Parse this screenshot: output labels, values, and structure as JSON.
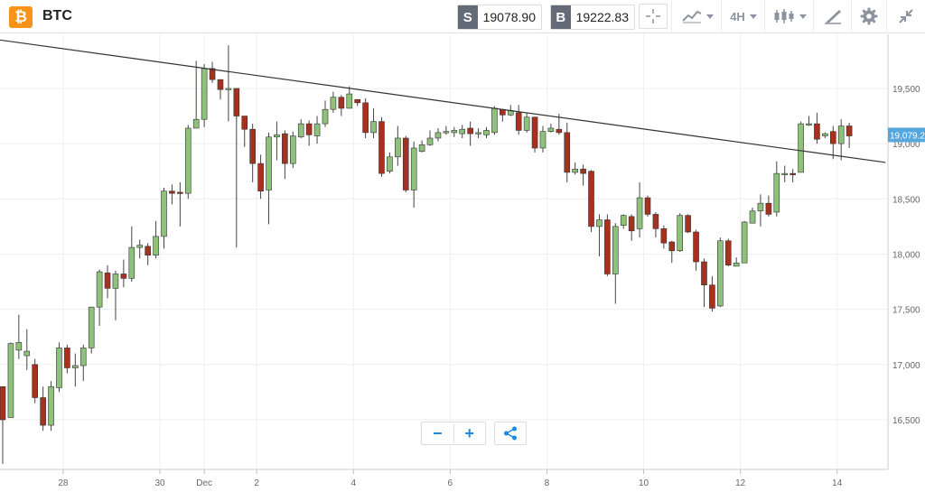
{
  "header": {
    "symbol": "BTC",
    "logo_glyph": "₿",
    "sell": {
      "tag": "S",
      "price": "19078.90"
    },
    "buy": {
      "tag": "B",
      "price": "19222.83"
    },
    "timeframe": "4H"
  },
  "icons": [
    "bitcoin-logo-icon",
    "crosshair-icon",
    "indicators-icon",
    "candlestick-type-icon",
    "drawing-tool-icon",
    "gear-icon",
    "collapse-icon",
    "zoom-out-icon",
    "zoom-in-icon",
    "share-icon"
  ],
  "colors": {
    "up": "#8ec27b",
    "down": "#a5311e",
    "grid": "#efefef",
    "axis_text": "#666666",
    "price_tag": "#56a7dd",
    "accent": "#1e88e5"
  },
  "chart_data": {
    "type": "candlestick",
    "x_ticks": [
      {
        "label": "28",
        "index": 7.5
      },
      {
        "label": "30",
        "index": 19.5
      },
      {
        "label": "Dec",
        "index": 25
      },
      {
        "label": "2",
        "index": 31.5
      },
      {
        "label": "4",
        "index": 43.5
      },
      {
        "label": "6",
        "index": 55.5
      },
      {
        "label": "8",
        "index": 67.5
      },
      {
        "label": "10",
        "index": 79.5
      },
      {
        "label": "12",
        "index": 91.5
      },
      {
        "label": "14",
        "index": 103.5
      }
    ],
    "y_ticks": [
      "16,500",
      "17,000",
      "17,500",
      "18,000",
      "18,500",
      "19,000",
      "19,500"
    ],
    "ylim": [
      16050,
      19990
    ],
    "current_price_label": "19,079.21",
    "current_price": 19079.21,
    "trendline": [
      [
        -0.5,
        19940
      ],
      [
        109.5,
        18830
      ]
    ],
    "candles": [
      [
        16800,
        16500,
        16100,
        16800
      ],
      [
        16520,
        17190,
        16520,
        17200
      ],
      [
        17130,
        17200,
        17450,
        17050
      ],
      [
        17080,
        17120,
        17320,
        16950
      ],
      [
        17000,
        16700,
        17050,
        16650
      ],
      [
        16700,
        16450,
        16800,
        16400
      ],
      [
        16450,
        16800,
        16850,
        16400
      ],
      [
        16790,
        17150,
        17200,
        16750
      ],
      [
        17150,
        16970,
        17180,
        16920
      ],
      [
        16970,
        16990,
        17100,
        16800
      ],
      [
        16990,
        17150,
        17180,
        16850
      ],
      [
        17150,
        17520,
        17520,
        17100
      ],
      [
        17520,
        17840,
        17860,
        17350
      ],
      [
        17830,
        17690,
        17900,
        17600
      ],
      [
        17690,
        17820,
        17850,
        17400
      ],
      [
        17820,
        17780,
        17950,
        17700
      ],
      [
        17780,
        18060,
        18250,
        17750
      ],
      [
        18060,
        18080,
        18130,
        17960
      ],
      [
        18070,
        17990,
        18100,
        17900
      ],
      [
        17990,
        18160,
        18300,
        17960
      ],
      [
        18160,
        18570,
        18600,
        18050
      ],
      [
        18570,
        18550,
        18630,
        18450
      ],
      [
        18560,
        18550,
        18650,
        18250
      ],
      [
        18550,
        19140,
        19170,
        18500
      ],
      [
        19140,
        19220,
        19750,
        19150
      ],
      [
        19220,
        19680,
        19720,
        19150
      ],
      [
        19680,
        19580,
        19740,
        19550
      ],
      [
        19580,
        19490,
        19580,
        19400
      ],
      [
        19490,
        19500,
        19890,
        19200
      ],
      [
        19500,
        19250,
        19480,
        18060
      ],
      [
        19250,
        19130,
        19250,
        18970
      ],
      [
        19130,
        18820,
        19180,
        18650
      ],
      [
        18820,
        18570,
        18900,
        18500
      ],
      [
        18580,
        19060,
        19100,
        18270
      ],
      [
        19060,
        19080,
        19200,
        18850
      ],
      [
        19090,
        18820,
        19120,
        18680
      ],
      [
        18820,
        19070,
        19110,
        18780
      ],
      [
        19060,
        19180,
        19220,
        19050
      ],
      [
        19180,
        19080,
        19210,
        18980
      ],
      [
        19070,
        19180,
        19250,
        19000
      ],
      [
        19180,
        19310,
        19390,
        19150
      ],
      [
        19310,
        19420,
        19470,
        19280
      ],
      [
        19420,
        19320,
        19440,
        19250
      ],
      [
        19320,
        19450,
        19520,
        19400
      ],
      [
        19400,
        19370,
        19400,
        19340
      ],
      [
        19370,
        19100,
        19410,
        19050
      ],
      [
        19100,
        19200,
        19320,
        19050
      ],
      [
        19200,
        18730,
        19240,
        18700
      ],
      [
        18750,
        18880,
        18920,
        18730
      ],
      [
        18880,
        19050,
        19160,
        18800
      ],
      [
        19050,
        18580,
        19070,
        18560
      ],
      [
        18580,
        18960,
        19020,
        18420
      ],
      [
        18930,
        18990,
        19030,
        18920
      ],
      [
        18990,
        19050,
        19120,
        18980
      ],
      [
        19050,
        19100,
        19140,
        19020
      ],
      [
        19100,
        19110,
        19160,
        19080
      ],
      [
        19100,
        19120,
        19150,
        19060
      ],
      [
        19090,
        19130,
        19170,
        19050
      ],
      [
        19140,
        19090,
        19200,
        18980
      ],
      [
        19100,
        19100,
        19140,
        19050
      ],
      [
        19080,
        19120,
        19150,
        19050
      ],
      [
        19100,
        19320,
        19340,
        19080
      ],
      [
        19310,
        19260,
        19310,
        19200
      ],
      [
        19260,
        19300,
        19350,
        19250
      ],
      [
        19280,
        19120,
        19350,
        19080
      ],
      [
        19120,
        19240,
        19280,
        19100
      ],
      [
        19240,
        18960,
        19240,
        18920
      ],
      [
        18960,
        19110,
        19160,
        18920
      ],
      [
        19110,
        19140,
        19180,
        19100
      ],
      [
        19130,
        19100,
        19270,
        19080
      ],
      [
        19100,
        18740,
        19190,
        18650
      ],
      [
        18740,
        18770,
        18830,
        18720
      ],
      [
        18770,
        18730,
        18810,
        18620
      ],
      [
        18750,
        18250,
        18760,
        18200
      ],
      [
        18250,
        18310,
        18360,
        17980
      ],
      [
        18310,
        17820,
        18360,
        17800
      ],
      [
        17820,
        18250,
        18280,
        17550
      ],
      [
        18260,
        18350,
        18360,
        18230
      ],
      [
        18340,
        18210,
        18360,
        18120
      ],
      [
        18230,
        18510,
        18650,
        18150
      ],
      [
        18510,
        18360,
        18530,
        18340
      ],
      [
        18360,
        18230,
        18380,
        18150
      ],
      [
        18230,
        18100,
        18260,
        18050
      ],
      [
        18110,
        18030,
        18120,
        17920
      ],
      [
        18030,
        18350,
        18370,
        18020
      ],
      [
        18350,
        18200,
        18360,
        18190
      ],
      [
        18200,
        17930,
        18220,
        17850
      ],
      [
        17930,
        17720,
        17960,
        17520
      ],
      [
        17720,
        17510,
        17800,
        17480
      ],
      [
        17530,
        18120,
        18150,
        17520
      ],
      [
        18120,
        17900,
        18140,
        17890
      ],
      [
        17890,
        17920,
        17970,
        17890
      ],
      [
        17920,
        18290,
        18300,
        17920
      ],
      [
        18280,
        18390,
        18420,
        18280
      ],
      [
        18390,
        18460,
        18540,
        18250
      ],
      [
        18460,
        18360,
        18530,
        18340
      ],
      [
        18380,
        18730,
        18840,
        18340
      ],
      [
        18720,
        18730,
        18800,
        18650
      ],
      [
        18730,
        18720,
        18770,
        18650
      ],
      [
        18740,
        19180,
        19200,
        18740
      ],
      [
        19170,
        19180,
        19250,
        19160
      ],
      [
        19180,
        19040,
        19280,
        19000
      ],
      [
        19070,
        19090,
        19100,
        19050
      ],
      [
        19110,
        19000,
        19160,
        18860
      ],
      [
        19000,
        19160,
        19220,
        18850
      ],
      [
        19160,
        19070,
        19190,
        18960
      ]
    ]
  }
}
